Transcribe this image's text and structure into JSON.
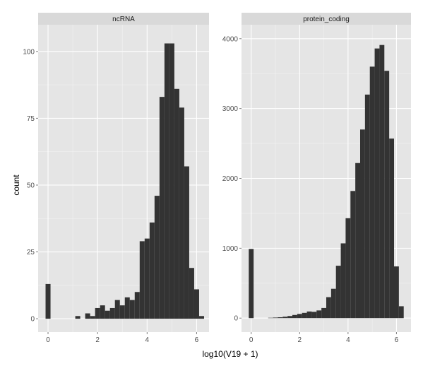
{
  "chart_data": {
    "type": "bar",
    "subtype": "faceted-histogram",
    "xlabel": "log10(V19 + 1)",
    "ylabel": "count",
    "bin_width": 0.2,
    "colors": {
      "bar": "#333333",
      "panel": "#e5e5e5",
      "strip": "#d9d9d9",
      "grid": "#ffffff"
    },
    "grid": true,
    "panels": [
      {
        "name": "ncRNA",
        "xlim": [
          -0.4,
          6.5
        ],
        "ylim": [
          -5,
          110
        ],
        "xticks": [
          0,
          2,
          4,
          6
        ],
        "yticks": [
          0,
          25,
          50,
          75,
          100
        ],
        "bins": [
          {
            "x": 0.0,
            "count": 13
          },
          {
            "x": 0.2,
            "count": 0
          },
          {
            "x": 0.4,
            "count": 0
          },
          {
            "x": 0.6,
            "count": 0
          },
          {
            "x": 0.8,
            "count": 0
          },
          {
            "x": 1.0,
            "count": 0
          },
          {
            "x": 1.2,
            "count": 1
          },
          {
            "x": 1.4,
            "count": 0
          },
          {
            "x": 1.6,
            "count": 2
          },
          {
            "x": 1.8,
            "count": 1
          },
          {
            "x": 2.0,
            "count": 4
          },
          {
            "x": 2.2,
            "count": 5
          },
          {
            "x": 2.4,
            "count": 3
          },
          {
            "x": 2.6,
            "count": 4
          },
          {
            "x": 2.8,
            "count": 7
          },
          {
            "x": 3.0,
            "count": 5
          },
          {
            "x": 3.2,
            "count": 8
          },
          {
            "x": 3.4,
            "count": 7
          },
          {
            "x": 3.6,
            "count": 10
          },
          {
            "x": 3.8,
            "count": 29
          },
          {
            "x": 4.0,
            "count": 30
          },
          {
            "x": 4.2,
            "count": 36
          },
          {
            "x": 4.4,
            "count": 46
          },
          {
            "x": 4.6,
            "count": 83
          },
          {
            "x": 4.8,
            "count": 103
          },
          {
            "x": 5.0,
            "count": 103
          },
          {
            "x": 5.2,
            "count": 86
          },
          {
            "x": 5.4,
            "count": 79
          },
          {
            "x": 5.6,
            "count": 57
          },
          {
            "x": 5.8,
            "count": 19
          },
          {
            "x": 6.0,
            "count": 11
          },
          {
            "x": 6.2,
            "count": 1
          }
        ]
      },
      {
        "name": "protein_coding",
        "xlim": [
          -0.4,
          6.6
        ],
        "ylim": [
          -200,
          4200
        ],
        "xticks": [
          0,
          2,
          4,
          6
        ],
        "yticks": [
          0,
          1000,
          2000,
          3000,
          4000
        ],
        "bins": [
          {
            "x": 0.0,
            "count": 990
          },
          {
            "x": 0.2,
            "count": 0
          },
          {
            "x": 0.4,
            "count": 0
          },
          {
            "x": 0.6,
            "count": 0
          },
          {
            "x": 0.8,
            "count": 5
          },
          {
            "x": 1.0,
            "count": 8
          },
          {
            "x": 1.2,
            "count": 12
          },
          {
            "x": 1.4,
            "count": 20
          },
          {
            "x": 1.6,
            "count": 30
          },
          {
            "x": 1.8,
            "count": 45
          },
          {
            "x": 2.0,
            "count": 60
          },
          {
            "x": 2.2,
            "count": 75
          },
          {
            "x": 2.4,
            "count": 95
          },
          {
            "x": 2.6,
            "count": 90
          },
          {
            "x": 2.8,
            "count": 110
          },
          {
            "x": 3.0,
            "count": 145
          },
          {
            "x": 3.2,
            "count": 300
          },
          {
            "x": 3.4,
            "count": 420
          },
          {
            "x": 3.6,
            "count": 750
          },
          {
            "x": 3.8,
            "count": 1070
          },
          {
            "x": 4.0,
            "count": 1430
          },
          {
            "x": 4.2,
            "count": 1820
          },
          {
            "x": 4.4,
            "count": 2220
          },
          {
            "x": 4.6,
            "count": 2700
          },
          {
            "x": 4.8,
            "count": 3200
          },
          {
            "x": 5.0,
            "count": 3600
          },
          {
            "x": 5.2,
            "count": 3860
          },
          {
            "x": 5.4,
            "count": 3910
          },
          {
            "x": 5.6,
            "count": 3540
          },
          {
            "x": 5.8,
            "count": 2570
          },
          {
            "x": 6.0,
            "count": 740
          },
          {
            "x": 6.2,
            "count": 170
          }
        ]
      }
    ]
  }
}
